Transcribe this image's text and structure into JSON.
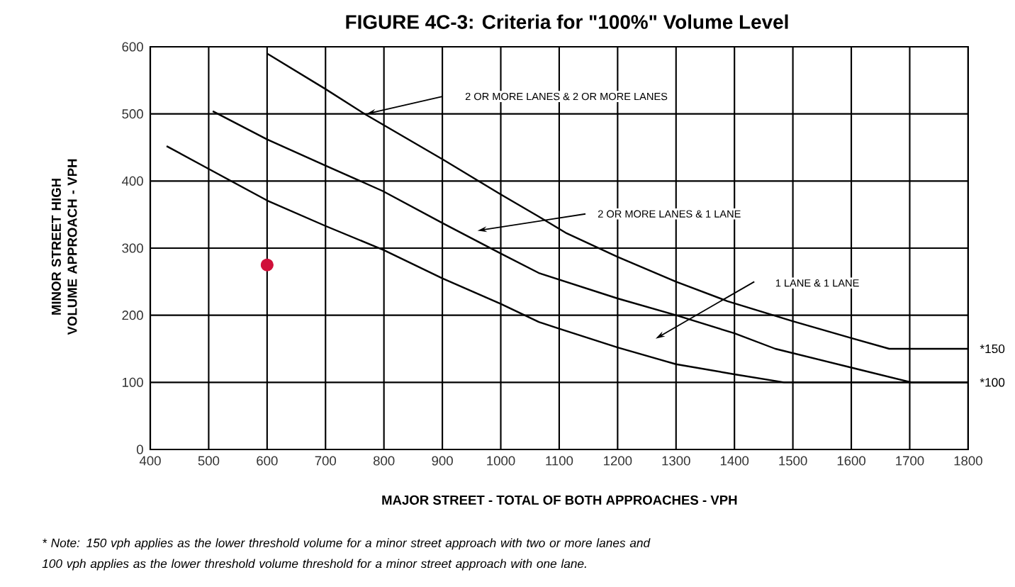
{
  "chart_data": {
    "type": "line",
    "title": "FIGURE 4C-3:  Criteria for \"100%\" Volume Level",
    "xlabel": "MAJOR STREET - TOTAL OF BOTH APPROACHES - VPH",
    "ylabel": "MINOR STREET HIGH VOLUME APPROACH - VPH",
    "xlim": [
      400,
      1800
    ],
    "ylim": [
      0,
      600
    ],
    "xticks": [
      400,
      500,
      600,
      700,
      800,
      900,
      1000,
      1100,
      1200,
      1300,
      1400,
      1500,
      1600,
      1700,
      1800
    ],
    "yticks": [
      0,
      100,
      200,
      300,
      400,
      500,
      600
    ],
    "grid": true,
    "marker": "none",
    "line_style": "solid",
    "series": [
      {
        "color": "#000000",
        "x": [
          600,
          700,
          767,
          903,
          1000,
          1065,
          1113,
          1200,
          1300,
          1388,
          1500,
          1600,
          1665,
          1800
        ],
        "values": [
          590,
          537,
          500,
          431,
          380,
          347,
          322,
          287,
          250,
          221,
          191,
          166,
          150,
          150
        ]
      },
      {
        "color": "#000000",
        "x": [
          507,
          600,
          700,
          798,
          903,
          1000,
          1065,
          1200,
          1300,
          1400,
          1470,
          1600,
          1703,
          1800
        ],
        "values": [
          504,
          462,
          423,
          385,
          336,
          292,
          263,
          225,
          200,
          173,
          150,
          122,
          100,
          100
        ]
      },
      {
        "color": "#000000",
        "x": [
          428,
          500,
          600,
          700,
          800,
          900,
          1000,
          1065,
          1100,
          1200,
          1300,
          1400,
          1485,
          1800
        ],
        "values": [
          452,
          418,
          371,
          333,
          297,
          255,
          217,
          190,
          180,
          152,
          127,
          112,
          100,
          100
        ]
      },
      {
        "type": "scatter",
        "color": "#d0103a",
        "marker": "circle",
        "x": [
          600
        ],
        "values": [
          275
        ]
      }
    ],
    "annotations": [
      "2 OR MORE LANES & 2 OR MORE LANES",
      "2 OR MORE LANES & 1 LANE",
      "1 LANE & 1 LANE",
      {
        "text": "*150",
        "x": 1800,
        "y": 150
      },
      {
        "text": "*100",
        "x": 1800,
        "y": 100
      },
      "* Note:  150 vph applies as the lower threshold volume for a minor street approach with two or more lanes and 100 vph applies as the lower threshold volume threshold for a minor street approach with one lane."
    ]
  }
}
